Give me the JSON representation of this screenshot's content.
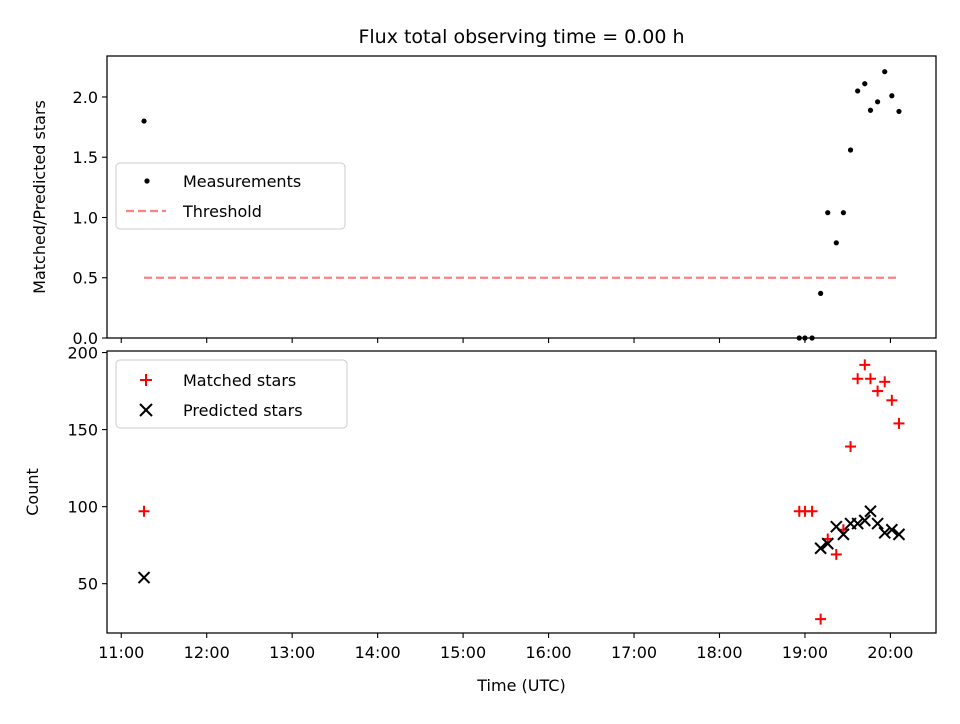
{
  "title": "Flux total observing time = 0.00 h",
  "colors": {
    "measurement": "#000000",
    "threshold": "#ff8080",
    "matched": "#ff0000",
    "predicted": "#000000"
  },
  "chart_data": [
    {
      "type": "scatter",
      "panel": "top",
      "title": "Flux total observing time = 0.00 h",
      "xlabel": "",
      "ylabel": "Matched/Predicted stars",
      "xlim": [
        "10:50",
        "20:32"
      ],
      "ylim": [
        0,
        2.34
      ],
      "yticks": [
        0.0,
        0.5,
        1.0,
        1.5,
        2.0
      ],
      "yticklabels": [
        "0.0",
        "0.5",
        "1.0",
        "1.5",
        "2.0"
      ],
      "grid": false,
      "legend": {
        "placement": "center-left",
        "entries": [
          "Measurements",
          "Threshold"
        ]
      },
      "series": [
        {
          "name": "Measurements",
          "marker": "dot",
          "points": [
            {
              "x": "11:16",
              "y": 1.8
            },
            {
              "x": "18:56",
              "y": 0.0
            },
            {
              "x": "19:00",
              "y": 0.0
            },
            {
              "x": "19:05",
              "y": 0.0
            },
            {
              "x": "19:11",
              "y": 0.37
            },
            {
              "x": "19:16",
              "y": 1.04
            },
            {
              "x": "19:22",
              "y": 0.79
            },
            {
              "x": "19:27",
              "y": 1.04
            },
            {
              "x": "19:32",
              "y": 1.56
            },
            {
              "x": "19:37",
              "y": 2.05
            },
            {
              "x": "19:42",
              "y": 2.11
            },
            {
              "x": "19:46",
              "y": 1.89
            },
            {
              "x": "19:51",
              "y": 1.96
            },
            {
              "x": "19:56",
              "y": 2.21
            },
            {
              "x": "20:01",
              "y": 2.01
            },
            {
              "x": "20:06",
              "y": 1.88
            }
          ]
        },
        {
          "name": "Threshold",
          "style": "dashed",
          "points": [
            {
              "x": "11:16",
              "y": 0.5
            },
            {
              "x": "20:06",
              "y": 0.5
            }
          ]
        }
      ]
    },
    {
      "type": "scatter",
      "panel": "bottom",
      "xlabel": "Time (UTC)",
      "ylabel": "Count",
      "xlim": [
        "10:50",
        "20:32"
      ],
      "ylim": [
        18,
        201
      ],
      "xticks": [
        "11:00",
        "12:00",
        "13:00",
        "14:00",
        "15:00",
        "16:00",
        "17:00",
        "18:00",
        "19:00",
        "20:00"
      ],
      "yticks": [
        50,
        100,
        150,
        200
      ],
      "yticklabels": [
        "50",
        "100",
        "150",
        "200"
      ],
      "grid": false,
      "legend": {
        "placement": "top-left",
        "entries": [
          "Matched stars",
          "Predicted stars"
        ]
      },
      "series": [
        {
          "name": "Matched stars",
          "marker": "plus",
          "points": [
            {
              "x": "11:16",
              "y": 97
            },
            {
              "x": "18:56",
              "y": 97
            },
            {
              "x": "19:00",
              "y": 97
            },
            {
              "x": "19:05",
              "y": 97
            },
            {
              "x": "19:11",
              "y": 27
            },
            {
              "x": "19:16",
              "y": 79
            },
            {
              "x": "19:22",
              "y": 69
            },
            {
              "x": "19:27",
              "y": 85
            },
            {
              "x": "19:32",
              "y": 139
            },
            {
              "x": "19:37",
              "y": 183
            },
            {
              "x": "19:42",
              "y": 192
            },
            {
              "x": "19:46",
              "y": 183
            },
            {
              "x": "19:51",
              "y": 175
            },
            {
              "x": "19:56",
              "y": 181
            },
            {
              "x": "20:01",
              "y": 169
            },
            {
              "x": "20:06",
              "y": 154
            }
          ]
        },
        {
          "name": "Predicted stars",
          "marker": "x",
          "points": [
            {
              "x": "11:16",
              "y": 54
            },
            {
              "x": "19:11",
              "y": 73
            },
            {
              "x": "19:16",
              "y": 76
            },
            {
              "x": "19:22",
              "y": 87
            },
            {
              "x": "19:27",
              "y": 82
            },
            {
              "x": "19:32",
              "y": 89
            },
            {
              "x": "19:37",
              "y": 89
            },
            {
              "x": "19:42",
              "y": 91
            },
            {
              "x": "19:46",
              "y": 97
            },
            {
              "x": "19:51",
              "y": 89
            },
            {
              "x": "19:56",
              "y": 83
            },
            {
              "x": "20:01",
              "y": 85
            },
            {
              "x": "20:06",
              "y": 82
            }
          ]
        }
      ]
    }
  ]
}
